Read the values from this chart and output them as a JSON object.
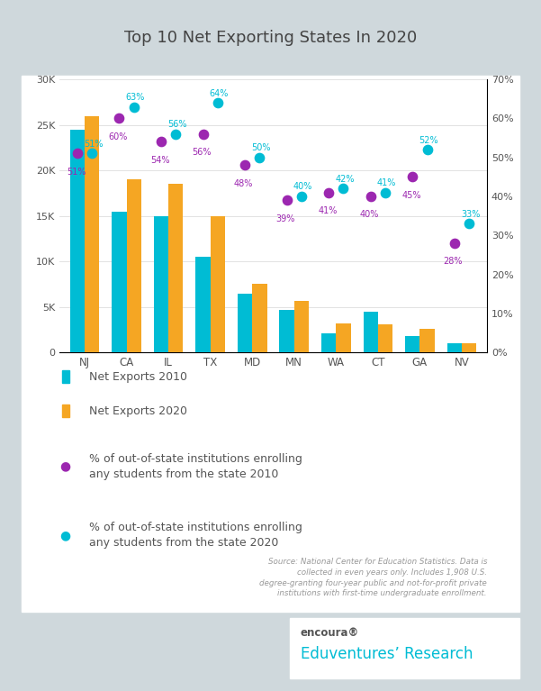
{
  "title": "Top 10 Net Exporting States In 2020",
  "states": [
    "NJ",
    "CA",
    "IL",
    "TX",
    "MD",
    "MN",
    "WA",
    "CT",
    "GA",
    "NV"
  ],
  "net_exports_2010": [
    24500,
    15500,
    15000,
    10500,
    6500,
    4700,
    2100,
    4500,
    1800,
    1000
  ],
  "net_exports_2020": [
    26000,
    19000,
    18500,
    15000,
    7500,
    5700,
    3200,
    3100,
    2600,
    1000
  ],
  "pct_2010": [
    0.51,
    0.6,
    0.54,
    0.56,
    0.48,
    0.39,
    0.41,
    0.4,
    0.45,
    0.28
  ],
  "pct_2020": [
    0.51,
    0.63,
    0.56,
    0.64,
    0.5,
    0.4,
    0.42,
    0.41,
    0.52,
    0.33
  ],
  "pct_2010_labels": [
    "51%",
    "60%",
    "54%",
    "56%",
    "48%",
    "39%",
    "41%",
    "40%",
    "45%",
    "28%"
  ],
  "pct_2020_labels": [
    "51%",
    "63%",
    "56%",
    "64%",
    "50%",
    "40%",
    "42%",
    "41%",
    "52%",
    "33%"
  ],
  "bar_color_2010": "#00bcd4",
  "bar_color_2020": "#f5a623",
  "dot_color_2010": "#9c27b0",
  "dot_color_2020": "#00bcd4",
  "background_outer": "#cfd8dc",
  "yticks_left": [
    0,
    5000,
    10000,
    15000,
    20000,
    25000,
    30000
  ],
  "yticks_left_labels": [
    "0",
    "5K",
    "10K",
    "15K",
    "20K",
    "25K",
    "30K"
  ],
  "yticks_right": [
    0.0,
    0.1,
    0.2,
    0.3,
    0.4,
    0.5,
    0.6,
    0.7
  ],
  "yticks_right_labels": [
    "0%",
    "10%",
    "20%",
    "30%",
    "40%",
    "50%",
    "60%",
    "70%"
  ],
  "source_text": "Source: National Center for Education Statistics. Data is\ncollected in even years only. Includes 1,908 U.S.\ndegree-granting four-year public and not-for-profit private\ninstitutions with first-time undergraduate enrollment.",
  "legend_label_2010_bar": "Net Exports 2010",
  "legend_label_2020_bar": "Net Exports 2020",
  "legend_label_2010_dot": "% of out-of-state institutions enrolling\nany students from the state 2010",
  "legend_label_2020_dot": "% of out-of-state institutions enrolling\nany students from the state 2020",
  "encoura_text": "encoura®",
  "eduventures_text": "Eduventures’ Research"
}
